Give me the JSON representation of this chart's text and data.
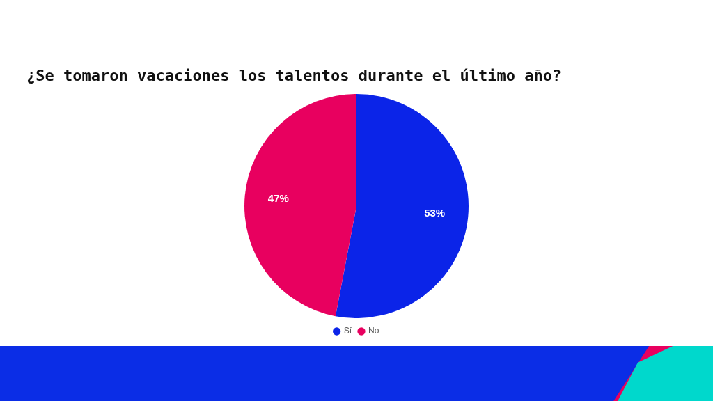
{
  "chart_data": {
    "type": "pie",
    "title": "¿Se tomaron vacaciones los talentos durante el último año?",
    "categories": [
      "Sí",
      "No"
    ],
    "values": [
      53,
      47
    ],
    "colors": [
      "#0b24e8",
      "#e8005f"
    ],
    "value_labels": [
      "53%",
      "47%"
    ],
    "legend": "bottom"
  }
}
